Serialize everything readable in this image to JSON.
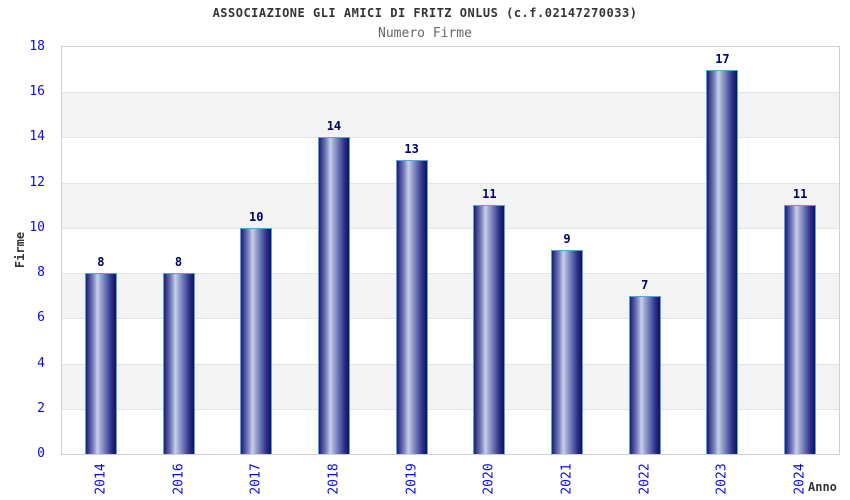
{
  "chart_data": {
    "type": "bar",
    "title": "ASSOCIAZIONE GLI AMICI DI FRITZ ONLUS (c.f.02147270033)",
    "subtitle": "Numero Firme",
    "xlabel": "Anno",
    "ylabel": "Firme",
    "categories": [
      "2014",
      "2016",
      "2017",
      "2018",
      "2019",
      "2020",
      "2021",
      "2022",
      "2023",
      "2024"
    ],
    "values": [
      8,
      8,
      10,
      14,
      13,
      11,
      9,
      7,
      17,
      11
    ],
    "ylim": [
      0,
      18
    ],
    "ytick_step": 2,
    "legend": "none",
    "grid": "alternating horizontal bands every 2 units",
    "colors": {
      "tick_label": "#0b0bdd",
      "value_label": "#000066",
      "title": "#333333",
      "subtitle": "#666666",
      "axis_label": "#333333",
      "band_gray": "#f3f3f3",
      "band_white": "#ffffff",
      "plot_border": "#d0d0d0",
      "bar_border": "#55a4e2",
      "bar_gradient": [
        "#1c1c74",
        "#7d86c0",
        "#c9cfe8",
        "#9aa3d0",
        "#5f68ab",
        "#2b2f86",
        "#11115a"
      ]
    }
  }
}
